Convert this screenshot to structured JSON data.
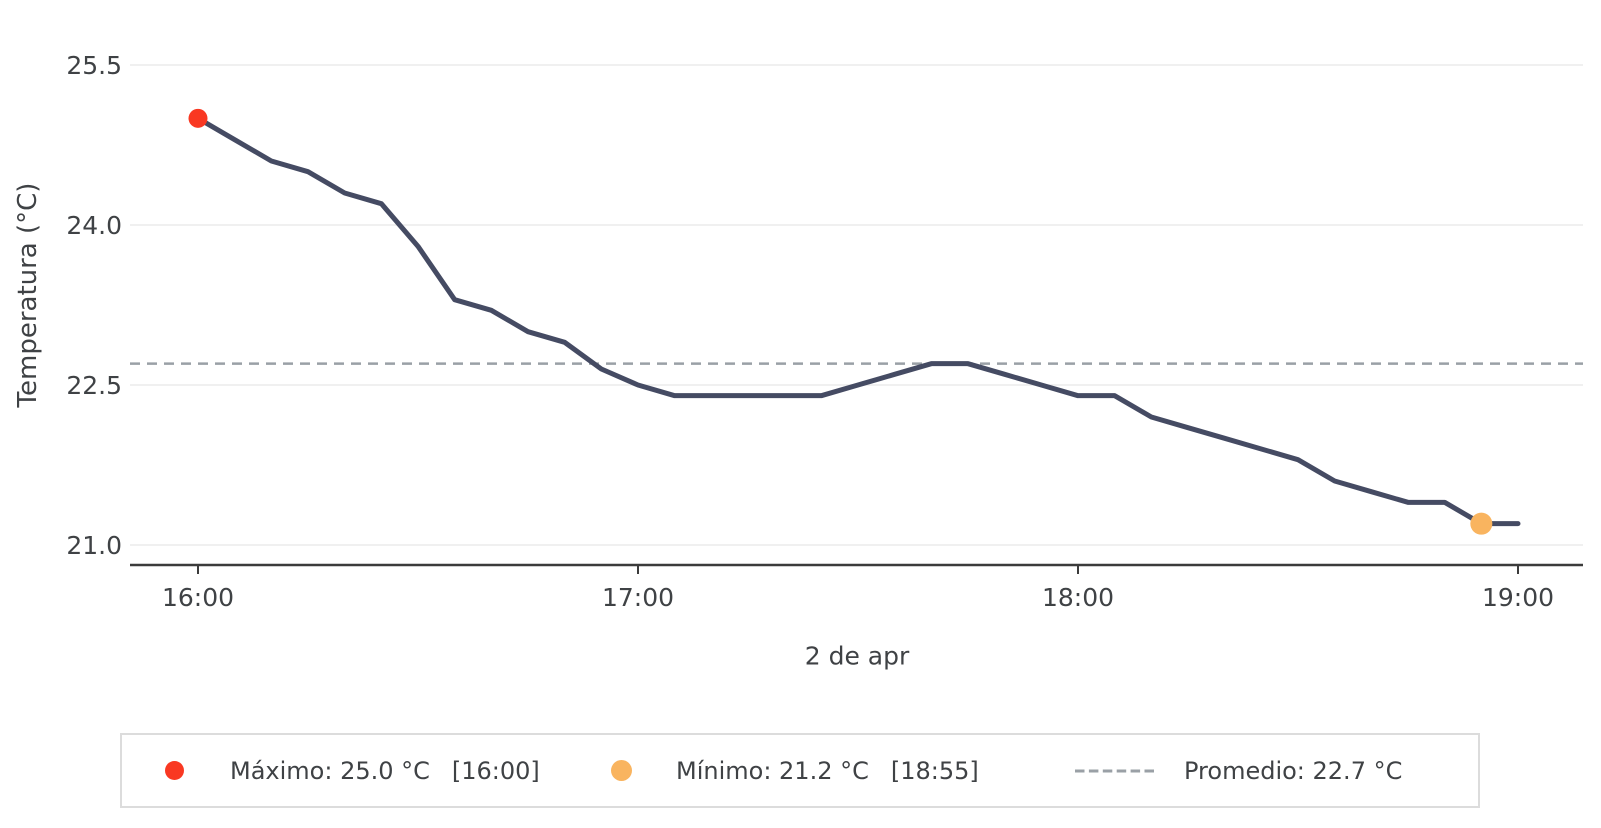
{
  "chart_data": {
    "type": "line",
    "title": "",
    "ylabel": "Temperatura (°C)",
    "xlabel": "2 de apr",
    "series_name": "Temperatura",
    "x": [
      "16:00",
      "16:05",
      "16:10",
      "16:15",
      "16:20",
      "16:25",
      "16:30",
      "16:35",
      "16:40",
      "16:45",
      "16:50",
      "16:55",
      "17:00",
      "17:05",
      "17:10",
      "17:15",
      "17:20",
      "17:25",
      "17:30",
      "17:35",
      "17:40",
      "17:45",
      "17:50",
      "17:55",
      "18:00",
      "18:05",
      "18:10",
      "18:15",
      "18:20",
      "18:25",
      "18:30",
      "18:35",
      "18:40",
      "18:45",
      "18:50",
      "18:55",
      "19:00"
    ],
    "values": [
      25.0,
      24.8,
      24.6,
      24.5,
      24.3,
      24.2,
      23.8,
      23.3,
      23.2,
      23.0,
      22.9,
      22.65,
      22.5,
      22.4,
      22.4,
      22.4,
      22.4,
      22.4,
      22.5,
      22.6,
      22.7,
      22.7,
      22.6,
      22.5,
      22.4,
      22.4,
      22.2,
      22.1,
      22.0,
      21.9,
      21.8,
      21.6,
      21.5,
      21.4,
      21.4,
      21.2,
      21.2
    ],
    "yticks": {
      "values": [
        25.5,
        24.0,
        22.5,
        21.0
      ],
      "labels": [
        "25.5",
        "24.0",
        "22.5",
        "21.0"
      ]
    },
    "xticks": [
      "16:00",
      "17:00",
      "18:00",
      "19:00"
    ],
    "ylim": [
      20.8,
      25.8
    ],
    "grid": true,
    "average": 22.7,
    "max": {
      "value": 25.0,
      "time": "16:00"
    },
    "min": {
      "value": 21.2,
      "time": "18:55"
    },
    "colors": {
      "line": "#454b63",
      "max_marker": "#f93822",
      "min_marker": "#f9b45f",
      "average_line": "#9aa0a6",
      "grid": "#ececec",
      "axis": "#3b3b3b",
      "text": "#3f4245"
    }
  },
  "legend": {
    "max_label": "Máximo: 25.0 °C",
    "max_time": "[16:00]",
    "min_label": "Mínimo: 21.2 °C",
    "min_time": "[18:55]",
    "avg_label": "Promedio: 22.7 °C"
  }
}
